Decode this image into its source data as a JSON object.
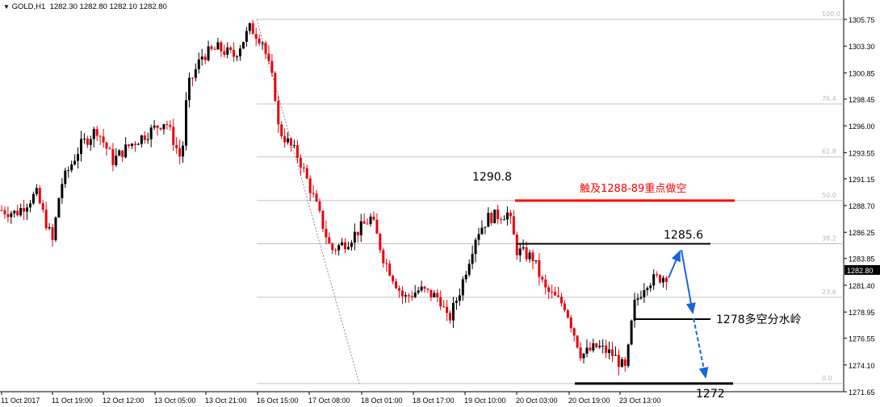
{
  "header": {
    "symbol": "GOLD,H1",
    "ohlc": "1282.30 1282.80 1282.10 1282.80",
    "menu_icon": "triangle-down-icon"
  },
  "chart_data": {
    "type": "candlestick",
    "symbol": "GOLD",
    "timeframe": "H1",
    "ylim": [
      1271.65,
      1305.75
    ],
    "y_ticks": [
      "1305.75",
      "1303.30",
      "1300.85",
      "1298.45",
      "1296.00",
      "1293.55",
      "1291.15",
      "1288.70",
      "1286.25",
      "1283.85",
      "1281.40",
      "1278.95",
      "1276.55",
      "1274.10",
      "1271.65"
    ],
    "current_price": "1282.80",
    "x_ticks": [
      "11 Oct 2017",
      "11 Oct 19:00",
      "12 Oct 12:00",
      "13 Oct 05:00",
      "13 Oct 21:00",
      "16 Oct 15:00",
      "17 Oct 08:00",
      "18 Oct 01:00",
      "18 Oct 17:00",
      "19 Oct 10:00",
      "20 Oct 03:00",
      "20 Oct 19:00",
      "23 Oct 13:00"
    ],
    "price_path_approx": [
      1288.3,
      1288,
      1289.8,
      1285.4,
      1290.5,
      1294.2,
      1295.7,
      1292.8,
      1294.2,
      1295.7,
      1296.5,
      1292.8,
      1299.4,
      1302.4,
      1303.1,
      1302.4,
      1305,
      1303.8,
      1299.4,
      1295.7,
      1293.1,
      1289.1,
      1284.6,
      1285.4,
      1287.6,
      1283.9,
      1280.2,
      1281,
      1280.2,
      1278,
      1281,
      1286.1,
      1287.6,
      1288,
      1284.6,
      1283.9,
      1281,
      1279.5,
      1275,
      1275.8,
      1275,
      1273.6,
      1279.5,
      1281.7,
      1282.4
    ],
    "colors": {
      "up": "#000000",
      "down": "#e8000b",
      "grid": "#c0c0c0"
    },
    "fibonacci": {
      "levels": [
        {
          "label": "100.0",
          "price": 1305.75
        },
        {
          "label": "76.4",
          "price": 1298.0
        },
        {
          "label": "61.8",
          "price": 1293.15
        },
        {
          "label": "50.0",
          "price": 1289.15
        },
        {
          "label": "38.2",
          "price": 1285.2
        },
        {
          "label": "23.6",
          "price": 1280.3
        },
        {
          "label": "0.0",
          "price": 1272.4
        }
      ]
    },
    "annotations": [
      {
        "text": "1290.8",
        "color": "#000000"
      },
      {
        "text": "触及1288-89重点做空",
        "color": "#ff0000"
      },
      {
        "text": "1285.6",
        "color": "#000000"
      },
      {
        "text": "1278多空分水岭",
        "color": "#000000"
      },
      {
        "text": "1272",
        "color": "#000000"
      }
    ],
    "levels": [
      {
        "price": 1289.15,
        "color": "#ff0000"
      },
      {
        "price": 1285.2,
        "color": "#000000"
      },
      {
        "price": 1278.3,
        "color": "#000000"
      },
      {
        "price": 1272.4,
        "color": "#000000"
      }
    ],
    "arrow_color": "#1565e0"
  }
}
